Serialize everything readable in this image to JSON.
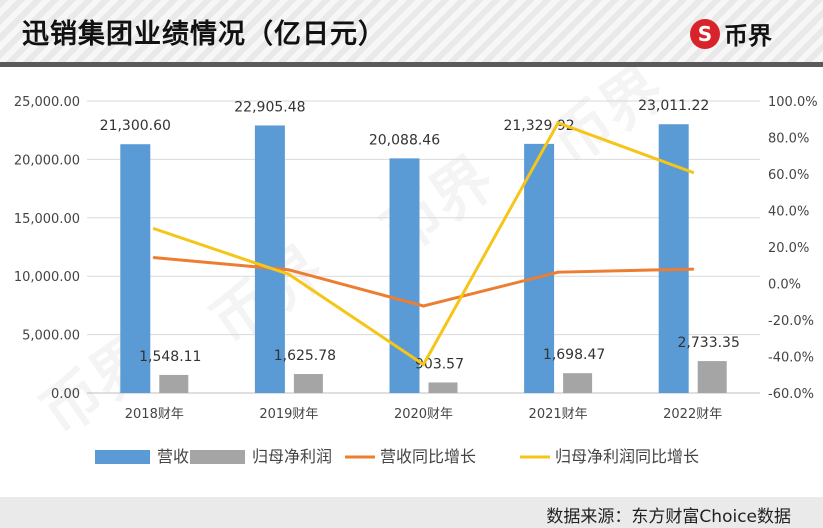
{
  "header": {
    "title": "迅销集团业绩情况（亿日元）",
    "logo_text": "币界",
    "logo_symbol": "S"
  },
  "footer": {
    "source": "数据来源：东方财富Choice数据"
  },
  "watermark": "币界",
  "chart_data": {
    "type": "bar+line",
    "categories": [
      "2018财年",
      "2019财年",
      "2020财年",
      "2021财年",
      "2022财年"
    ],
    "y_left": {
      "range": [
        0,
        25000
      ],
      "ticks": [
        "0.00",
        "5,000.00",
        "10,000.00",
        "15,000.00",
        "20,000.00",
        "25,000.00"
      ]
    },
    "y_right": {
      "range": [
        -60,
        100
      ],
      "ticks": [
        "-60.0%",
        "-40.0%",
        "-20.0%",
        "0.0%",
        "20.0%",
        "40.0%",
        "60.0%",
        "80.0%",
        "100.0%"
      ]
    },
    "grid": true,
    "legend_position": "bottom",
    "series": [
      {
        "name": "营收",
        "type": "bar",
        "axis": "left",
        "color": "#5b9bd5",
        "values": [
          21300.6,
          22905.48,
          20088.46,
          21329.92,
          23011.22
        ],
        "labels": [
          "21,300.60",
          "22,905.48",
          "20,088.46",
          "21,329.92",
          "23,011.22"
        ]
      },
      {
        "name": "归母净利润",
        "type": "bar",
        "axis": "left",
        "color": "#a5a5a5",
        "values": [
          1548.11,
          1625.78,
          903.57,
          1698.47,
          2733.35
        ],
        "labels": [
          "1,548.11",
          "1,625.78",
          "903.57",
          "1,698.47",
          "2,733.35"
        ]
      },
      {
        "name": "营收同比增长",
        "type": "line",
        "axis": "right",
        "color": "#ed7d31",
        "values": [
          14.2,
          7.5,
          -12.3,
          6.2,
          7.9
        ]
      },
      {
        "name": "归母净利润同比增长",
        "type": "line",
        "axis": "right",
        "color": "#f5c518",
        "values": [
          30.0,
          5.0,
          -44.4,
          88.0,
          60.9
        ]
      }
    ]
  }
}
